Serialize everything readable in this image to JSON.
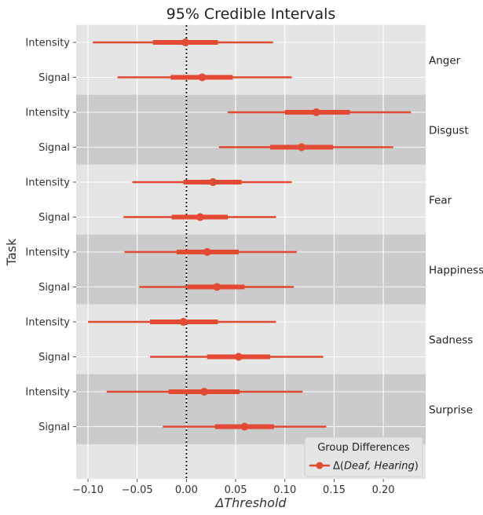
{
  "chart_data": {
    "type": "interval",
    "title": "95% Credible Intervals",
    "xlabel": "ΔThreshold",
    "ylabel": "Task",
    "xlim": [
      -0.112,
      0.243
    ],
    "xticks": [
      -0.1,
      -0.05,
      0.0,
      0.05,
      0.1,
      0.15,
      0.2
    ],
    "xtick_labels": [
      "−0.10",
      "−0.05",
      "0.00",
      "0.05",
      "0.10",
      "0.15",
      "0.20"
    ],
    "reference_line": 0.0,
    "grid": true,
    "legend": {
      "title": "Group Differences",
      "label": "Δ(Deaf, Hearing)",
      "label_parts": [
        "Δ(",
        "Deaf, Hearing",
        ")"
      ],
      "position": "bottom-right"
    },
    "series_color": "#e24a33",
    "groups": [
      {
        "name": "Anger",
        "shaded": false,
        "rows": [
          {
            "task": "Intensity",
            "mean": -0.001,
            "inner": [
              -0.034,
              0.032
            ],
            "outer": [
              -0.095,
              0.088
            ]
          },
          {
            "task": "Signal",
            "mean": 0.016,
            "inner": [
              -0.016,
              0.047
            ],
            "outer": [
              -0.07,
              0.107
            ]
          }
        ]
      },
      {
        "name": "Disgust",
        "shaded": true,
        "rows": [
          {
            "task": "Intensity",
            "mean": 0.132,
            "inner": [
              0.1,
              0.166
            ],
            "outer": [
              0.042,
              0.228
            ]
          },
          {
            "task": "Signal",
            "mean": 0.117,
            "inner": [
              0.085,
              0.149
            ],
            "outer": [
              0.033,
              0.21
            ]
          }
        ]
      },
      {
        "name": "Fear",
        "shaded": false,
        "rows": [
          {
            "task": "Intensity",
            "mean": 0.027,
            "inner": [
              -0.003,
              0.056
            ],
            "outer": [
              -0.055,
              0.107
            ]
          },
          {
            "task": "Signal",
            "mean": 0.014,
            "inner": [
              -0.015,
              0.042
            ],
            "outer": [
              -0.064,
              0.091
            ]
          }
        ]
      },
      {
        "name": "Happiness",
        "shaded": true,
        "rows": [
          {
            "task": "Intensity",
            "mean": 0.021,
            "inner": [
              -0.01,
              0.053
            ],
            "outer": [
              -0.063,
              0.112
            ]
          },
          {
            "task": "Signal",
            "mean": 0.031,
            "inner": [
              0.001,
              0.059
            ],
            "outer": [
              -0.048,
              0.109
            ]
          }
        ]
      },
      {
        "name": "Sadness",
        "shaded": false,
        "rows": [
          {
            "task": "Intensity",
            "mean": -0.003,
            "inner": [
              -0.037,
              0.032
            ],
            "outer": [
              -0.1,
              0.091
            ]
          },
          {
            "task": "Signal",
            "mean": 0.053,
            "inner": [
              0.021,
              0.085
            ],
            "outer": [
              -0.037,
              0.139
            ]
          }
        ]
      },
      {
        "name": "Surprise",
        "shaded": true,
        "rows": [
          {
            "task": "Intensity",
            "mean": 0.018,
            "inner": [
              -0.018,
              0.054
            ],
            "outer": [
              -0.081,
              0.118
            ]
          },
          {
            "task": "Signal",
            "mean": 0.059,
            "inner": [
              0.029,
              0.089
            ],
            "outer": [
              -0.024,
              0.142
            ]
          }
        ]
      }
    ]
  }
}
